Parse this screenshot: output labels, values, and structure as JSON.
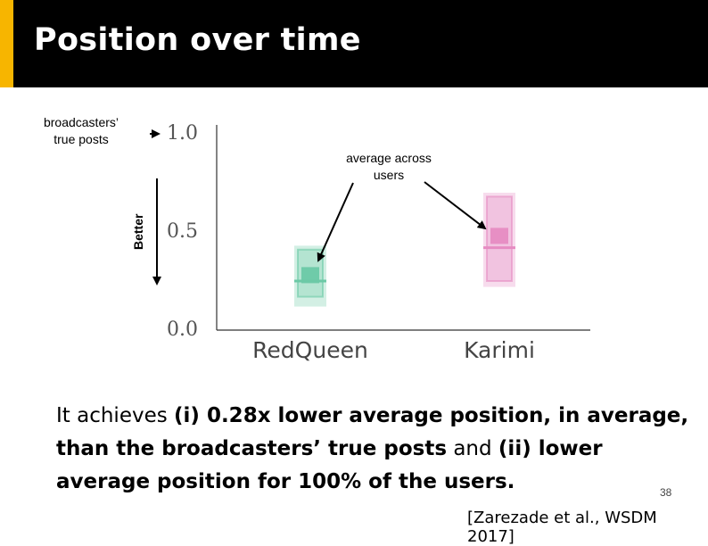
{
  "slide": {
    "title": "Position over time",
    "page_number": "38",
    "citation": "[Zarezade et al., WSDM 2017]"
  },
  "annotations": {
    "broadcasters_line1": "broadcasters’",
    "broadcasters_line2": "true posts",
    "better": "Better",
    "average_line1": "average across",
    "average_line2": "users"
  },
  "body": {
    "p1": "It achieves ",
    "b1": "(i) 0.28x lower average position, in average, than the broadcasters’ true posts",
    "p2": " and ",
    "b2": "(ii) lower average position for 100% of the users."
  },
  "chart_data": {
    "type": "box",
    "ylim": [
      0,
      1
    ],
    "yticks": [
      "1.0",
      "0.5",
      "0.0"
    ],
    "categories": [
      "RedQueen",
      "Karimi"
    ],
    "series": [
      {
        "category": "RedQueen",
        "whisker_low": 0.12,
        "q1": 0.17,
        "q3": 0.41,
        "whisker_high": 0.43,
        "median": 0.25,
        "mean": 0.28,
        "color": "#6cc9a6"
      },
      {
        "category": "Karimi",
        "whisker_low": 0.22,
        "q1": 0.25,
        "q3": 0.68,
        "whisker_high": 0.7,
        "median": 0.42,
        "mean": 0.48,
        "color": "#e68cc2"
      }
    ]
  },
  "colors": {
    "accent": "#f7b500",
    "title_bg": "#000000"
  }
}
